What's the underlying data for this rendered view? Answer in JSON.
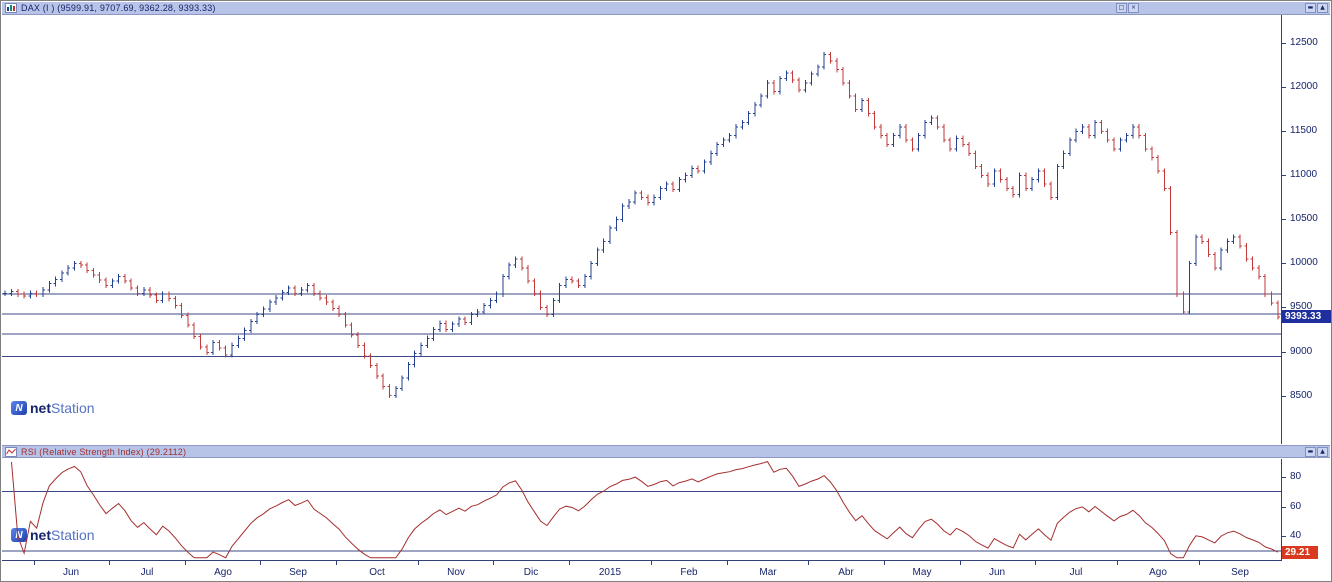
{
  "colors": {
    "titlebar_bg": "#b8c3e8",
    "title_text": "#16246b",
    "rsi_title_text": "#a03030",
    "up": "#25418f",
    "down": "#c23a3a",
    "support_line": "#3a4a86",
    "axis_text": "#16246b",
    "price_tag_bg": "#1f2f9e",
    "rsi_tag_bg": "#d93a1f",
    "rsi_line": "#a52f2f",
    "logo_blue": "#2f5fd0",
    "brand_dark": "#16246b",
    "brand_light": "#5572c4"
  },
  "panels": {
    "dax": {
      "title": "DAX (I ) (9599.91, 9707.69, 9362.28, 9393.33)",
      "last_price_label": "9393.33",
      "buttons": {
        "restore": "□",
        "close": "×",
        "minimize": "▬",
        "axis_up": "▲"
      }
    },
    "rsi": {
      "title": "RSI (Relative Strength Index) (29.2112)",
      "value_label": "29.21",
      "buttons": {
        "minimize": "▬",
        "axis_up": "▲"
      }
    }
  },
  "watermark": {
    "icon_letter": "N",
    "bold": "net",
    "light": "Station"
  },
  "chart_data": [
    {
      "type": "ohlc-bar",
      "title": "DAX (I)",
      "ohlc_label": [
        9599.91,
        9707.69,
        9362.28,
        9393.33
      ],
      "ylim": [
        7950,
        12820
      ],
      "yticks": [
        8500,
        9000,
        9500,
        10000,
        10500,
        11000,
        11500,
        12000,
        12500
      ],
      "horizontal_lines": [
        9655,
        9425,
        9200,
        8945
      ],
      "last_price": 9393.33,
      "x_axis": {
        "month_labels": [
          "Jun",
          "Jul",
          "Ago",
          "Sep",
          "Oct",
          "Nov",
          "Dic",
          "2015",
          "Feb",
          "Mar",
          "Abr",
          "May",
          "Jun",
          "Jul",
          "Ago",
          "Sep"
        ],
        "month_starts": [
          5,
          17,
          29,
          41,
          53,
          66,
          78,
          90,
          103,
          115,
          128,
          140,
          152,
          164,
          177,
          190
        ]
      },
      "closes": [
        9660,
        9680,
        9650,
        9630,
        9660,
        9650,
        9700,
        9770,
        9820,
        9890,
        9950,
        10000,
        9980,
        9920,
        9870,
        9810,
        9750,
        9800,
        9850,
        9800,
        9720,
        9660,
        9700,
        9640,
        9580,
        9650,
        9600,
        9520,
        9410,
        9300,
        9170,
        9050,
        8990,
        9100,
        9040,
        8960,
        9070,
        9150,
        9240,
        9340,
        9420,
        9480,
        9560,
        9610,
        9670,
        9720,
        9660,
        9700,
        9750,
        9660,
        9610,
        9560,
        9490,
        9420,
        9300,
        9190,
        9070,
        8950,
        8840,
        8720,
        8600,
        8500,
        8580,
        8700,
        8850,
        8980,
        9070,
        9150,
        9250,
        9320,
        9250,
        9310,
        9370,
        9330,
        9420,
        9450,
        9520,
        9580,
        9650,
        9850,
        9980,
        10050,
        9950,
        9800,
        9660,
        9500,
        9420,
        9580,
        9750,
        9820,
        9800,
        9750,
        9850,
        10000,
        10150,
        10250,
        10400,
        10500,
        10650,
        10700,
        10800,
        10750,
        10690,
        10750,
        10850,
        10900,
        10840,
        10950,
        11000,
        11080,
        11050,
        11150,
        11250,
        11350,
        11400,
        11450,
        11550,
        11600,
        11700,
        11800,
        11900,
        12050,
        11950,
        12100,
        12160,
        12080,
        11970,
        12050,
        12150,
        12230,
        12370,
        12300,
        12200,
        12050,
        11900,
        11750,
        11850,
        11700,
        11550,
        11450,
        11350,
        11450,
        11550,
        11400,
        11300,
        11450,
        11600,
        11650,
        11550,
        11400,
        11300,
        11420,
        11350,
        11250,
        11100,
        11000,
        10900,
        11050,
        10950,
        10850,
        10780,
        11000,
        10850,
        10950,
        11050,
        10900,
        10750,
        11100,
        11250,
        11400,
        11500,
        11550,
        11450,
        11600,
        11500,
        11400,
        11300,
        11400,
        11450,
        11550,
        11450,
        11300,
        11200,
        11050,
        10850,
        10350,
        9650,
        9450,
        10000,
        10300,
        10250,
        10100,
        9950,
        10150,
        10250,
        10300,
        10200,
        10050,
        9950,
        9850,
        9650,
        9550,
        9393.33
      ]
    },
    {
      "type": "line",
      "title": "RSI (Relative Strength Index)",
      "period": 14,
      "current_value": 29.2112,
      "ylim": [
        24,
        92
      ],
      "yticks": [
        40,
        60,
        80
      ],
      "levels": [
        30,
        70
      ],
      "derived_from": "chart_data[0].closes"
    }
  ]
}
